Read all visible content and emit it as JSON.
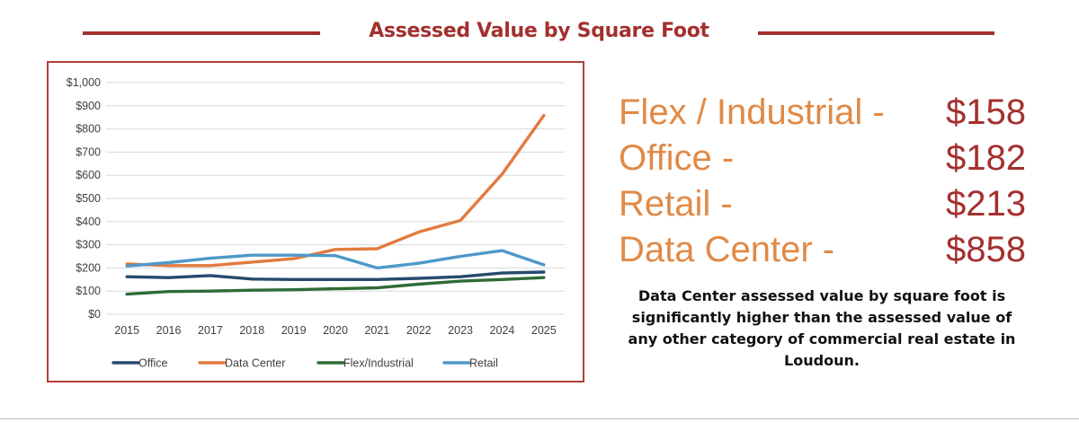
{
  "header": {
    "title": "Assessed Value by Square Foot"
  },
  "summary": {
    "rows": [
      {
        "category": "Flex / Industrial -",
        "value": "$158"
      },
      {
        "category": "Office -",
        "value": "$182"
      },
      {
        "category": "Retail -",
        "value": "$213"
      },
      {
        "category": "Data Center -",
        "value": "$858"
      }
    ],
    "note": "Data Center assessed value by square foot is significantly higher than the assessed value of any other category of commercial real estate in Loudoun."
  },
  "colors": {
    "accent": "#a3302e",
    "summary_category": "#e08a47",
    "Office": "#264a6e",
    "Data Center": "#e27b3f",
    "Flex/Industrial": "#2f6b36",
    "Retail": "#4f98c9"
  },
  "chart_data": {
    "type": "line",
    "title": "",
    "xlabel": "",
    "ylabel": "",
    "x": [
      "2015",
      "2016",
      "2017",
      "2018",
      "2019",
      "2020",
      "2021",
      "2022",
      "2023",
      "2024",
      "2025"
    ],
    "ylim": [
      0,
      1000
    ],
    "yticks": [
      0,
      100,
      200,
      300,
      400,
      500,
      600,
      700,
      800,
      900,
      1000
    ],
    "ytick_labels": [
      "$0",
      "$100",
      "$200",
      "$300",
      "$400",
      "$500",
      "$600",
      "$700",
      "$800",
      "$900",
      "$1,000"
    ],
    "grid": true,
    "legend_position": "bottom",
    "series": [
      {
        "name": "Office",
        "values": [
          162,
          158,
          167,
          152,
          150,
          150,
          150,
          155,
          162,
          178,
          182
        ]
      },
      {
        "name": "Data Center",
        "values": [
          217,
          210,
          210,
          225,
          240,
          280,
          283,
          355,
          405,
          605,
          858
        ]
      },
      {
        "name": "Flex/Industrial",
        "values": [
          87,
          98,
          100,
          104,
          106,
          110,
          114,
          130,
          143,
          150,
          158
        ]
      },
      {
        "name": "Retail",
        "values": [
          208,
          223,
          242,
          255,
          255,
          253,
          200,
          220,
          250,
          275,
          213
        ]
      }
    ]
  }
}
